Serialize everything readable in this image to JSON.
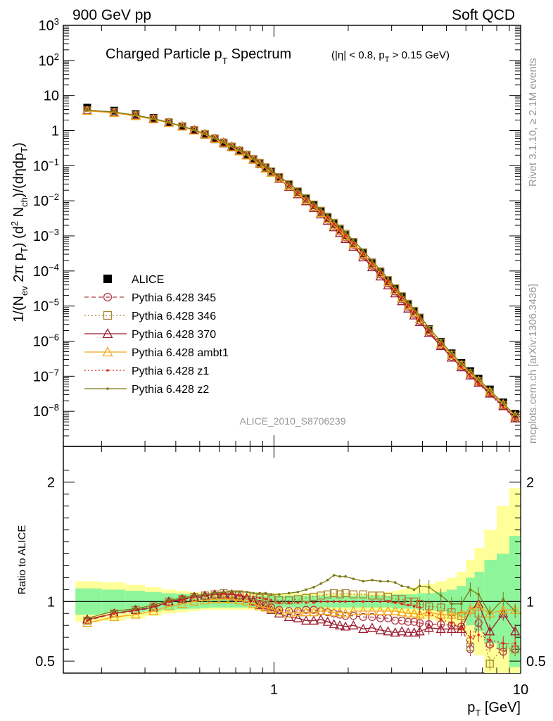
{
  "header": {
    "left": "900 GeV pp",
    "right": "Soft QCD"
  },
  "side": {
    "rivet": "Rivet 3.1.10, ≥ 2.1M events",
    "mcplots": "mcplots.cern.ch [arXiv:1306.3436]"
  },
  "chart_data": [
    {
      "type": "scatter",
      "title": "Charged Particle pT Spectrum",
      "title_main": "Charged Particle p",
      "title_sub": "T",
      "title_tail": "Spectrum",
      "subtitle": "(|η| < 0.8, pT > 0.15 GeV)",
      "ylabel": "1/(Nev 2π pT) (d2 Nch)/(dηdpT)",
      "xlabel": "pT [GeV]",
      "xscale": "log",
      "yscale": "log",
      "xlim": [
        0.14,
        10
      ],
      "ylim": [
        1e-09,
        1000
      ],
      "yticks": [
        "10^-8",
        "10^-7",
        "10^-6",
        "10^-5",
        "10^-4",
        "10^-3",
        "10^-2",
        "10^-1",
        "1",
        "10",
        "10^2",
        "10^3"
      ],
      "xticks": [
        "1",
        "10"
      ],
      "watermark": "ALICE_2010_S8706239",
      "legend_position": "left",
      "x": [
        0.175,
        0.225,
        0.275,
        0.325,
        0.375,
        0.425,
        0.475,
        0.525,
        0.575,
        0.625,
        0.675,
        0.725,
        0.775,
        0.825,
        0.875,
        0.925,
        0.975,
        1.05,
        1.15,
        1.25,
        1.35,
        1.45,
        1.55,
        1.65,
        1.75,
        1.85,
        1.95,
        2.1,
        2.3,
        2.5,
        2.7,
        2.9,
        3.1,
        3.3,
        3.5,
        3.7,
        3.9,
        4.25,
        4.75,
        5.25,
        5.75,
        6.25,
        6.75,
        7.5,
        8.5,
        9.5
      ],
      "series": [
        {
          "name": "ALICE",
          "color": "#000000",
          "marker": "filled-square",
          "values": [
            4.5,
            3.7,
            2.95,
            2.3,
            1.72,
            1.32,
            1.0,
            0.76,
            0.57,
            0.43,
            0.33,
            0.255,
            0.195,
            0.15,
            0.115,
            0.088,
            0.068,
            0.047,
            0.029,
            0.018,
            0.0115,
            0.0075,
            0.0049,
            0.0033,
            0.0022,
            0.00152,
            0.00106,
            0.00063,
            0.00032,
            0.000165,
            9.2e-05,
            5.2e-05,
            3.1e-05,
            1.85e-05,
            1.15e-05,
            7.3e-06,
            4.7e-06,
            2.2e-06,
            9.5e-07,
            4.5e-07,
            2.4e-07,
            1.4e-07,
            8.5e-08,
            4.2e-08,
            1.8e-08,
            8.5e-09
          ]
        },
        {
          "name": "Pythia 6.428 345",
          "color": "#b03a48",
          "marker": "open-circle",
          "line": "dashed",
          "values": [
            3.7,
            3.3,
            2.68,
            2.15,
            1.65,
            1.3,
            1.02,
            0.78,
            0.59,
            0.45,
            0.34,
            0.263,
            0.2,
            0.15,
            0.113,
            0.085,
            0.064,
            0.043,
            0.026,
            0.016,
            0.0102,
            0.0067,
            0.0044,
            0.0029,
            0.00192,
            0.00133,
            0.00091,
            0.00055,
            0.000272,
            0.000141,
            7.9e-05,
            4.4e-05,
            2.6e-05,
            1.55e-05,
            9.5e-06,
            6e-06,
            3.8e-06,
            1.8e-06,
            7.7e-07,
            3.6e-07,
            1.9e-07,
            1.1e-07,
            6.8e-08,
            3.3e-08,
            1.4e-08,
            6.5e-09
          ]
        },
        {
          "name": "Pythia 6.428 346",
          "color": "#a8852f",
          "marker": "open-square",
          "line": "dotted",
          "values": [
            3.75,
            3.35,
            2.72,
            2.2,
            1.7,
            1.33,
            1.04,
            0.8,
            0.6,
            0.46,
            0.35,
            0.27,
            0.205,
            0.155,
            0.12,
            0.09,
            0.069,
            0.047,
            0.0295,
            0.0185,
            0.0118,
            0.0078,
            0.0052,
            0.0035,
            0.00235,
            0.00162,
            0.00115,
            0.00067,
            0.00034,
            0.000175,
            9.75e-05,
            5.5e-05,
            3.2e-05,
            1.9e-05,
            1.16e-05,
            7.3e-06,
            4.7e-06,
            2.1e-06,
            8.9e-07,
            4.1e-07,
            2.1e-07,
            1.2e-07,
            7.2e-08,
            3.5e-08,
            1.5e-08,
            7e-09
          ]
        },
        {
          "name": "Pythia 6.428 370",
          "color": "#9b1b30",
          "marker": "open-triangle",
          "line": "solid",
          "values": [
            3.75,
            3.3,
            2.7,
            2.18,
            1.7,
            1.33,
            1.04,
            0.8,
            0.6,
            0.46,
            0.35,
            0.268,
            0.2,
            0.15,
            0.112,
            0.084,
            0.063,
            0.042,
            0.025,
            0.0154,
            0.0097,
            0.0063,
            0.0041,
            0.0027,
            0.00176,
            0.0012,
            0.00082,
            0.00049,
            0.000245,
            0.000128,
            7e-05,
            3.9e-05,
            2.3e-05,
            1.38e-05,
            8.5e-06,
            5.4e-06,
            3.5e-06,
            1.7e-06,
            7.3e-07,
            3.4e-07,
            1.8e-07,
            1.05e-07,
            6.5e-08,
            3.2e-08,
            1.4e-08,
            6.3e-09
          ]
        },
        {
          "name": "Pythia 6.428 ambt1",
          "color": "#f0a81c",
          "marker": "open-triangle",
          "line": "solid",
          "values": [
            3.65,
            3.2,
            2.6,
            2.1,
            1.65,
            1.3,
            1.0,
            0.77,
            0.58,
            0.44,
            0.335,
            0.258,
            0.195,
            0.146,
            0.11,
            0.083,
            0.063,
            0.043,
            0.026,
            0.0163,
            0.0104,
            0.0068,
            0.0045,
            0.003,
            0.002,
            0.00138,
            0.00096,
            0.00058,
            0.000293,
            0.000152,
            8.5e-05,
            4.8e-05,
            2.8e-05,
            1.67e-05,
            1.03e-05,
            6.5e-06,
            4.2e-06,
            2e-06,
            8.5e-07,
            4e-07,
            2.1e-07,
            1.2e-07,
            7.5e-08,
            3.7e-08,
            1.6e-08,
            7.5e-09
          ]
        },
        {
          "name": "Pythia 6.428 z1",
          "color": "#e0281e",
          "marker": "dot",
          "line": "dotted",
          "values": [
            3.8,
            3.35,
            2.75,
            2.2,
            1.7,
            1.33,
            1.04,
            0.8,
            0.61,
            0.46,
            0.35,
            0.268,
            0.205,
            0.155,
            0.118,
            0.089,
            0.068,
            0.046,
            0.028,
            0.0175,
            0.0112,
            0.0073,
            0.0049,
            0.0033,
            0.0022,
            0.00152,
            0.00105,
            0.00063,
            0.00032,
            0.000166,
            9.2e-05,
            5.2e-05,
            3e-05,
            1.8e-05,
            1.1e-05,
            7e-06,
            4.5e-06,
            2e-06,
            8e-07,
            3.6e-07,
            1.8e-07,
            1e-07,
            6e-08,
            3e-08,
            1.3e-08,
            6e-09
          ]
        },
        {
          "name": "Pythia 6.428 z2",
          "color": "#7a7a14",
          "marker": "dot",
          "line": "solid",
          "values": [
            3.85,
            3.4,
            2.75,
            2.2,
            1.72,
            1.34,
            1.05,
            0.81,
            0.61,
            0.47,
            0.36,
            0.275,
            0.21,
            0.16,
            0.122,
            0.093,
            0.072,
            0.05,
            0.0312,
            0.0197,
            0.0127,
            0.0084,
            0.0057,
            0.0039,
            0.0026,
            0.00182,
            0.00127,
            0.00074,
            0.00038,
            0.000195,
            0.000108,
            6.1e-05,
            3.5e-05,
            2.1e-05,
            1.27e-05,
            8.1e-06,
            5.2e-06,
            2.4e-06,
            9.8e-07,
            4.5e-07,
            2.3e-07,
            1.4e-07,
            8.3e-08,
            4e-08,
            1.7e-08,
            7.8e-09
          ]
        }
      ]
    },
    {
      "type": "scatter",
      "ylabel": "Ratio to ALICE",
      "xlabel": "pT [GeV]",
      "xscale": "log",
      "xlim": [
        0.14,
        10
      ],
      "ylim": [
        0.4,
        2.3
      ],
      "yticks": [
        "0.5",
        "1",
        "2"
      ],
      "band_inner_halfwidth": [
        0.11,
        0.1,
        0.09,
        0.08,
        0.07,
        0.065,
        0.06,
        0.055,
        0.05,
        0.05,
        0.05,
        0.05,
        0.05,
        0.05,
        0.05,
        0.05,
        0.05,
        0.05,
        0.05,
        0.05,
        0.05,
        0.05,
        0.05,
        0.05,
        0.05,
        0.05,
        0.05,
        0.05,
        0.05,
        0.05,
        0.05,
        0.05,
        0.06,
        0.06,
        0.06,
        0.06,
        0.07,
        0.07,
        0.08,
        0.1,
        0.13,
        0.2,
        0.25,
        0.35,
        0.4,
        0.55
      ],
      "band_outer_halfwidth": [
        0.17,
        0.16,
        0.14,
        0.12,
        0.1,
        0.09,
        0.08,
        0.07,
        0.07,
        0.07,
        0.07,
        0.07,
        0.07,
        0.07,
        0.07,
        0.07,
        0.07,
        0.07,
        0.07,
        0.07,
        0.07,
        0.07,
        0.07,
        0.07,
        0.07,
        0.07,
        0.07,
        0.07,
        0.07,
        0.07,
        0.07,
        0.08,
        0.09,
        0.1,
        0.11,
        0.12,
        0.14,
        0.15,
        0.17,
        0.2,
        0.25,
        0.35,
        0.45,
        0.6,
        0.8,
        0.95
      ],
      "series": [
        {
          "name": "Pythia 6.428 345",
          "color": "#b03a48",
          "marker": "open-circle",
          "line": "dashed",
          "values": [
            0.84,
            0.9,
            0.92,
            0.95,
            0.99,
            1.02,
            1.03,
            1.04,
            1.05,
            1.05,
            1.04,
            1.03,
            1.02,
            1.0,
            0.98,
            0.97,
            0.95,
            0.93,
            0.92,
            0.92,
            0.93,
            0.93,
            0.92,
            0.91,
            0.9,
            0.89,
            0.88,
            0.88,
            0.87,
            0.87,
            0.86,
            0.86,
            0.84,
            0.84,
            0.83,
            0.83,
            0.82,
            0.81,
            0.81,
            0.8,
            0.79,
            0.6,
            0.82,
            0.64,
            0.58,
            0.6
          ]
        },
        {
          "name": "Pythia 6.428 346",
          "color": "#a8852f",
          "marker": "open-square",
          "line": "dotted",
          "values": [
            0.84,
            0.9,
            0.93,
            0.96,
            1.0,
            1.02,
            1.04,
            1.05,
            1.06,
            1.07,
            1.06,
            1.06,
            1.05,
            1.04,
            1.03,
            1.03,
            1.02,
            1.01,
            1.01,
            1.02,
            1.03,
            1.04,
            1.05,
            1.06,
            1.07,
            1.06,
            1.07,
            1.06,
            1.06,
            1.05,
            1.05,
            1.04,
            1.02,
            1.02,
            1.0,
            1.0,
            0.98,
            0.96,
            0.95,
            0.91,
            0.88,
            0.62,
            0.9,
            0.48,
            0.62,
            0.6
          ]
        },
        {
          "name": "Pythia 6.428 370",
          "color": "#9b1b30",
          "marker": "open-triangle",
          "line": "solid",
          "values": [
            0.85,
            0.9,
            0.93,
            0.95,
            1.0,
            1.02,
            1.04,
            1.05,
            1.06,
            1.06,
            1.06,
            1.05,
            1.03,
            1.0,
            0.97,
            0.96,
            0.93,
            0.9,
            0.87,
            0.86,
            0.84,
            0.84,
            0.85,
            0.83,
            0.81,
            0.8,
            0.79,
            0.8,
            0.77,
            0.78,
            0.76,
            0.75,
            0.74,
            0.75,
            0.74,
            0.74,
            0.75,
            0.78,
            0.77,
            0.77,
            0.77,
            0.93,
            0.98,
            0.75,
            0.9,
            0.75
          ]
        },
        {
          "name": "Pythia 6.428 ambt1",
          "color": "#f0a81c",
          "marker": "open-triangle",
          "line": "solid",
          "values": [
            0.82,
            0.87,
            0.89,
            0.92,
            0.96,
            0.98,
            1.0,
            1.01,
            1.02,
            1.02,
            1.02,
            1.01,
            1.0,
            0.98,
            0.96,
            0.95,
            0.94,
            0.92,
            0.9,
            0.91,
            0.91,
            0.91,
            0.92,
            0.92,
            0.91,
            0.91,
            0.9,
            0.92,
            0.92,
            0.92,
            0.92,
            0.92,
            0.92,
            0.91,
            0.9,
            0.9,
            0.89,
            0.91,
            0.89,
            0.89,
            0.9,
            0.93,
            0.96,
            0.9,
            0.93,
            0.93
          ]
        },
        {
          "name": "Pythia 6.428 z1",
          "color": "#e0281e",
          "marker": "dot",
          "line": "dotted",
          "values": [
            0.84,
            0.9,
            0.93,
            0.96,
            1.0,
            1.01,
            1.04,
            1.05,
            1.07,
            1.07,
            1.06,
            1.05,
            1.05,
            1.04,
            1.03,
            1.02,
            1.01,
            0.99,
            0.99,
            0.99,
            0.99,
            0.99,
            1.0,
            1.0,
            1.0,
            1.0,
            1.0,
            1.0,
            1.0,
            1.0,
            1.0,
            1.0,
            0.99,
            0.98,
            0.97,
            0.96,
            0.95,
            0.9,
            0.85,
            0.82,
            0.78,
            0.7,
            0.72,
            0.68,
            0.65,
            0.65
          ]
        },
        {
          "name": "Pythia 6.428 z2",
          "color": "#7a7a14",
          "marker": "dot",
          "line": "solid",
          "values": [
            0.86,
            0.92,
            0.94,
            0.97,
            1.01,
            1.03,
            1.05,
            1.06,
            1.07,
            1.08,
            1.08,
            1.08,
            1.08,
            1.07,
            1.07,
            1.07,
            1.06,
            1.06,
            1.07,
            1.08,
            1.1,
            1.12,
            1.15,
            1.18,
            1.22,
            1.21,
            1.21,
            1.19,
            1.17,
            1.18,
            1.17,
            1.17,
            1.16,
            1.13,
            1.12,
            1.1,
            1.13,
            1.12,
            1.05,
            0.98,
            0.98,
            1.1,
            1.06,
            0.9,
            1.02,
            0.92
          ]
        }
      ]
    }
  ]
}
